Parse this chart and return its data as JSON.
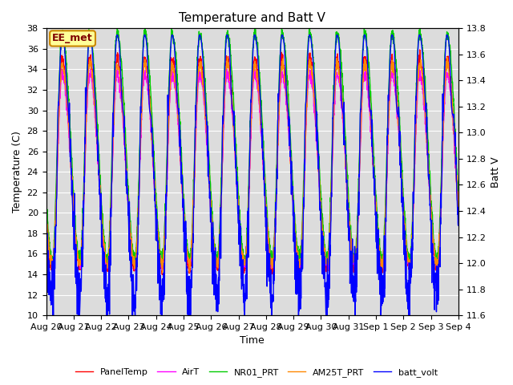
{
  "title": "Temperature and Batt V",
  "xlabel": "Time",
  "ylabel_left": "Temperature (C)",
  "ylabel_right": "Batt V",
  "ylim_left": [
    10,
    38
  ],
  "ylim_right": [
    11.6,
    13.8
  ],
  "bg_color": "#dcdcdc",
  "fig_color": "#ffffff",
  "annotation": "EE_met",
  "series": {
    "PanelTemp": {
      "color": "#ff0000",
      "lw": 1.0
    },
    "AirT": {
      "color": "#ff00ff",
      "lw": 1.0
    },
    "NR01_PRT": {
      "color": "#00cc00",
      "lw": 1.0
    },
    "AM25T_PRT": {
      "color": "#ff8800",
      "lw": 1.0
    },
    "batt_volt": {
      "color": "#0000ff",
      "lw": 1.0
    }
  },
  "xtick_labels": [
    "Aug 20",
    "Aug 21",
    "Aug 22",
    "Aug 23",
    "Aug 24",
    "Aug 25",
    "Aug 26",
    "Aug 27",
    "Aug 28",
    "Aug 29",
    "Aug 30",
    "Aug 31",
    "Sep 1",
    "Sep 2",
    "Sep 3",
    "Sep 4"
  ],
  "yticks_left": [
    10,
    12,
    14,
    16,
    18,
    20,
    22,
    24,
    26,
    28,
    30,
    32,
    34,
    36,
    38
  ],
  "yticks_right": [
    11.6,
    11.8,
    12.0,
    12.2,
    12.4,
    12.6,
    12.8,
    13.0,
    13.2,
    13.4,
    13.6,
    13.8
  ],
  "n_days": 15,
  "pts_per_day": 144
}
